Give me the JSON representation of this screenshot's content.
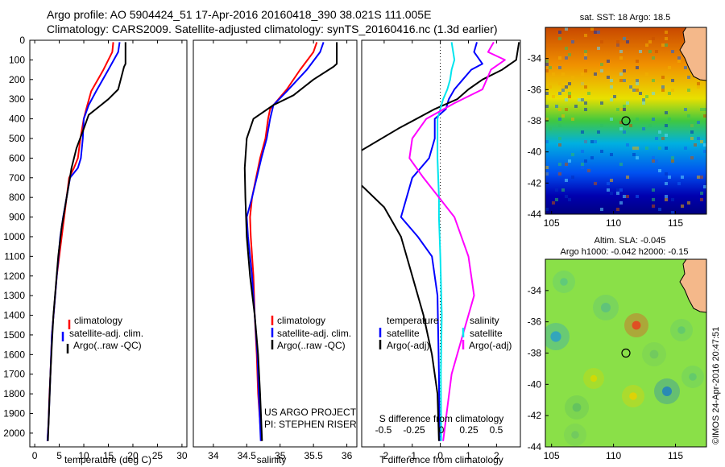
{
  "header": {
    "line1": "Argo profile: AO 5904424_51 17-Apr-2016 20160418_390 38.021S 111.005E",
    "line2": "Climatology: CARS2009. Satellite-adjusted climatology: synTS_20160416.nc (1.3d earlier)"
  },
  "colors": {
    "climatology": "#ff0000",
    "satellite": "#0000ff",
    "argo": "#000000",
    "sal_satellite": "#00e5ee",
    "sal_argo": "#ff00ff"
  },
  "credit": "©IMOS 24-Apr-2016 20:47:51",
  "chart_data": [
    {
      "type": "line",
      "id": "temperature",
      "xlabel": "temperature (deg C)",
      "ylabel": "",
      "xlim": [
        -1,
        31
      ],
      "ylim": [
        2070,
        0
      ],
      "xticks": [
        0,
        5,
        10,
        15,
        20,
        25,
        30
      ],
      "yticks": [
        0,
        100,
        200,
        300,
        400,
        500,
        600,
        700,
        800,
        900,
        1000,
        1100,
        1200,
        1300,
        1400,
        1500,
        1600,
        1700,
        1800,
        1900,
        2000
      ],
      "legend": [
        "climatology",
        "satellite-adj. clim.",
        "Argo(..raw -QC)"
      ],
      "series": [
        {
          "name": "climatology",
          "color": "red",
          "x": [
            16,
            15.8,
            14,
            11.5,
            10.5,
            10,
            9.3,
            8.8,
            8,
            7,
            6.5,
            6,
            5.5,
            4.5,
            4,
            3.5,
            3.2,
            3,
            2.8,
            2.6
          ],
          "y": [
            10,
            60,
            150,
            260,
            350,
            400,
            500,
            600,
            650,
            700,
            800,
            900,
            1000,
            1200,
            1350,
            1500,
            1700,
            1800,
            1950,
            2040
          ]
        },
        {
          "name": "satellite-adj. clim.",
          "color": "blue",
          "x": [
            17.3,
            17,
            15,
            12.5,
            11,
            10,
            9.8,
            9.4,
            8.8,
            7.2,
            6.5,
            5.8,
            5.2,
            4.5,
            4,
            3.5,
            3.2,
            2.8,
            2.6
          ],
          "y": [
            10,
            60,
            150,
            260,
            330,
            400,
            500,
            600,
            650,
            700,
            800,
            900,
            1000,
            1200,
            1350,
            1500,
            1700,
            1950,
            2040
          ]
        },
        {
          "name": "Argo(..raw -QC)",
          "color": "black",
          "x": [
            18.5,
            18.5,
            18.2,
            17,
            15,
            13.5,
            11,
            10,
            8.5,
            7.5,
            6.5,
            5.5,
            4.8,
            4.3,
            3.8,
            3.5,
            3.2,
            2.9,
            2.7
          ],
          "y": [
            10,
            120,
            135,
            250,
            300,
            330,
            380,
            450,
            550,
            650,
            800,
            950,
            1100,
            1250,
            1400,
            1550,
            1700,
            1900,
            2040
          ]
        }
      ]
    },
    {
      "type": "line",
      "id": "salinity",
      "xlabel": "salinity",
      "xlim": [
        33.7,
        36.15
      ],
      "ylim": [
        2070,
        0
      ],
      "xticks": [
        34,
        34.5,
        35,
        35.5,
        36
      ],
      "xticklabels": [
        "34",
        "34.5",
        "35",
        "35.5",
        "36"
      ],
      "legend": [
        "climatology",
        "satellite-adj. clim.",
        "Argo(..raw -QC)"
      ],
      "series": [
        {
          "name": "climatology",
          "color": "red",
          "x": [
            35.55,
            35.5,
            35.3,
            35.1,
            34.85,
            34.82,
            34.78,
            34.7,
            34.58,
            34.55,
            34.56,
            34.6,
            34.62,
            34.65,
            34.67,
            34.7,
            34.72
          ],
          "y": [
            10,
            60,
            150,
            250,
            350,
            400,
            500,
            600,
            800,
            900,
            1000,
            1200,
            1400,
            1600,
            1800,
            1950,
            2040
          ]
        },
        {
          "name": "satellite-adj. clim.",
          "color": "blue",
          "x": [
            35.65,
            35.6,
            35.4,
            35.1,
            34.9,
            34.85,
            34.8,
            34.72,
            34.58,
            34.5,
            34.52,
            34.58,
            34.62,
            34.66,
            34.68,
            34.71
          ],
          "y": [
            10,
            60,
            150,
            260,
            330,
            400,
            500,
            600,
            800,
            900,
            1000,
            1200,
            1400,
            1600,
            1800,
            2040
          ]
        },
        {
          "name": "Argo(..raw -QC)",
          "color": "black",
          "x": [
            35.85,
            35.85,
            35.8,
            35.5,
            35.2,
            34.9,
            34.6,
            34.5,
            34.47,
            34.48,
            34.5,
            34.55,
            34.62,
            34.67,
            34.7,
            34.73
          ],
          "y": [
            10,
            120,
            135,
            200,
            280,
            330,
            400,
            500,
            650,
            800,
            1000,
            1200,
            1400,
            1600,
            1800,
            2040
          ]
        }
      ],
      "annotation": [
        "US ARGO PROJECT",
        "PI: STEPHEN RISER"
      ]
    },
    {
      "type": "line",
      "id": "difference",
      "xlabel": "T difference from climatology",
      "toplabel": "S difference from climatology",
      "xlim": [
        -2.8,
        2.85
      ],
      "ylim": [
        2070,
        0
      ],
      "xticks": [
        -2,
        -1,
        0,
        1,
        2
      ],
      "topticks": [
        "-0.5",
        "-0.25",
        "0",
        "0.25",
        "0.5"
      ],
      "legend_t_title": "temperature",
      "legend_s_title": "salinity",
      "legend": [
        "satellite",
        "Argo(-adj)",
        "satellite",
        "Argo(-adj)"
      ],
      "series": [
        {
          "name": "satellite",
          "color": "blue",
          "x": [
            1.3,
            1.2,
            1.5,
            1.1,
            0.8,
            0.5,
            0.3,
            0.2,
            -0.2,
            -0.2,
            -0.4,
            -1.0,
            -1.2,
            -1.4,
            -0.8,
            -0.3,
            -0.1,
            -0.05,
            -0.03
          ],
          "y": [
            10,
            60,
            120,
            150,
            200,
            250,
            300,
            350,
            400,
            500,
            600,
            700,
            800,
            900,
            1000,
            1100,
            1300,
            1700,
            2040
          ]
        },
        {
          "name": "Argo(-adj)",
          "color": "black",
          "x": [
            2.8,
            2.7,
            2.2,
            1.5,
            1.0,
            0.6,
            -0.2,
            -1.5,
            -2.8
          ],
          "y": [
            10,
            100,
            150,
            200,
            250,
            300,
            350,
            450,
            560
          ]
        },
        {
          "name": "Argo(-adj)",
          "color": "black",
          "x": [
            -2.8,
            -2.0,
            -1.4,
            -1.0,
            -0.6,
            -0.3,
            -0.1,
            -0.05
          ],
          "y": [
            740,
            850,
            1000,
            1200,
            1400,
            1600,
            1800,
            2040
          ]
        },
        {
          "name": "satellite",
          "color": "cyan",
          "x": [
            0.4,
            0.5,
            0.4,
            0.35,
            0.25,
            0.1,
            0.0,
            -0.1,
            -0.1,
            -0.05,
            -0.05,
            0.0,
            0.05,
            0.02,
            0.03
          ],
          "y": [
            10,
            100,
            150,
            200,
            250,
            300,
            350,
            400,
            600,
            800,
            900,
            1100,
            1400,
            1700,
            2040
          ]
        },
        {
          "name": "Argo(-adj)",
          "color": "magenta",
          "x": [
            1.9,
            1.7,
            2.3,
            1.8,
            1.5,
            0.5,
            -0.5,
            -1.0,
            -1.1,
            -0.6,
            0.5,
            1.0,
            1.2,
            0.8,
            0.4,
            0.1
          ],
          "y": [
            10,
            60,
            100,
            150,
            250,
            320,
            400,
            500,
            600,
            700,
            900,
            1100,
            1300,
            1500,
            1700,
            2040
          ]
        }
      ]
    },
    {
      "type": "heatmap",
      "id": "sst_map",
      "title": "sat. SST: 18 Argo: 18.5",
      "xlim": [
        104.5,
        117.5
      ],
      "ylim": [
        -44,
        -32
      ],
      "xticks": [
        105,
        110,
        115
      ],
      "yticks": [
        -34,
        -36,
        -38,
        -40,
        -42,
        -44
      ],
      "float_position": [
        111.0,
        -38.0
      ]
    },
    {
      "type": "heatmap",
      "id": "sla_map",
      "title_line1": "Altim. SLA: -0.045",
      "title_line2": "Argo h1000: -0.042 h2000: -0.15",
      "xlim": [
        104.5,
        117.5
      ],
      "ylim": [
        -44,
        -32
      ],
      "xticks": [
        105,
        110,
        115
      ],
      "yticks": [
        -34,
        -36,
        -38,
        -40,
        -42,
        -44
      ],
      "float_position": [
        111.0,
        -38.0
      ]
    }
  ]
}
